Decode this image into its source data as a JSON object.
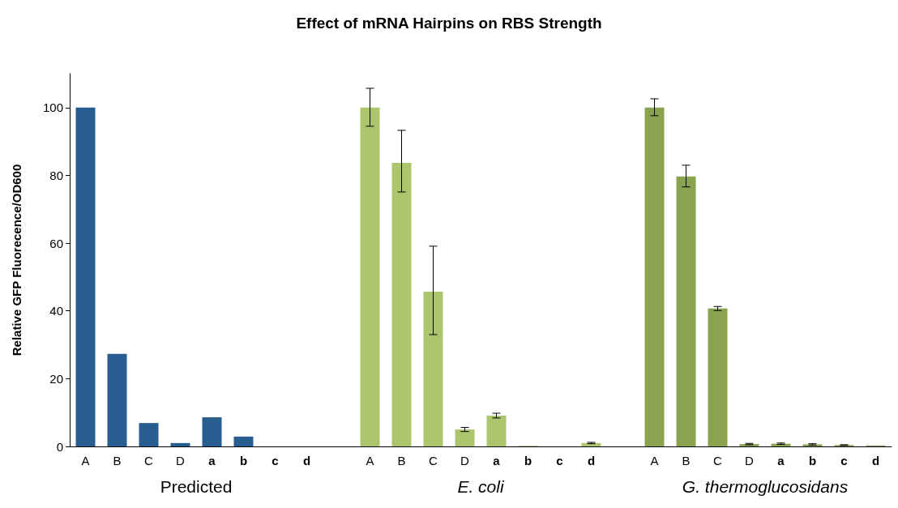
{
  "chart_data": {
    "type": "bar",
    "title": "Effect of mRNA Hairpins on RBS Strength",
    "ylabel": "Relative GFP Fluorecence/OD600",
    "categories": [
      "A",
      "B",
      "C",
      "D",
      "a",
      "b",
      "c",
      "d",
      null,
      "A",
      "B",
      "C",
      "D",
      "a",
      "b",
      "c",
      "d",
      null,
      "A",
      "B",
      "C",
      "D",
      "a",
      "b",
      "c",
      "d"
    ],
    "series": [
      {
        "name": "Predicted",
        "color": "#285d8f",
        "values": [
          100,
          27.3,
          6.9,
          1,
          8.6,
          2.9,
          0,
          0,
          null,
          null,
          null,
          null,
          null,
          null,
          null,
          null,
          null,
          null,
          null,
          null,
          null,
          null,
          null,
          null,
          null,
          null
        ]
      },
      {
        "name": "E. coli",
        "color": "#abc56c",
        "values": [
          null,
          null,
          null,
          null,
          null,
          null,
          null,
          null,
          null,
          100,
          83.7,
          45.7,
          5,
          9.1,
          0.2,
          null,
          1,
          null,
          null,
          null,
          null,
          null,
          null,
          null,
          null,
          null
        ],
        "errors": [
          null,
          null,
          null,
          null,
          null,
          null,
          null,
          null,
          null,
          [
            94.5,
            105.7
          ],
          [
            75.1,
            93.3
          ],
          [
            33,
            59.1
          ],
          0.6,
          0.7,
          null,
          null,
          0.2,
          null,
          null,
          null,
          null,
          null,
          null,
          null,
          null,
          null
        ]
      },
      {
        "name": "G. thermoglucosidans",
        "color": "#89a34f",
        "values": [
          null,
          null,
          null,
          null,
          null,
          null,
          null,
          null,
          null,
          null,
          null,
          null,
          null,
          null,
          null,
          null,
          null,
          null,
          100,
          79.7,
          40.7,
          0.7,
          0.8,
          0.6,
          0.4,
          0.3
        ],
        "errors": [
          null,
          null,
          null,
          null,
          null,
          null,
          null,
          null,
          null,
          null,
          null,
          null,
          null,
          null,
          null,
          null,
          null,
          null,
          [
            97.6,
            102.6
          ],
          [
            76.6,
            83
          ],
          0.6,
          0.2,
          0.2,
          0.2,
          0.1,
          null
        ]
      }
    ],
    "ylim": [
      0,
      110
    ],
    "yticks": [
      0,
      20,
      40,
      60,
      80,
      100
    ],
    "grid": false,
    "legend": false
  }
}
